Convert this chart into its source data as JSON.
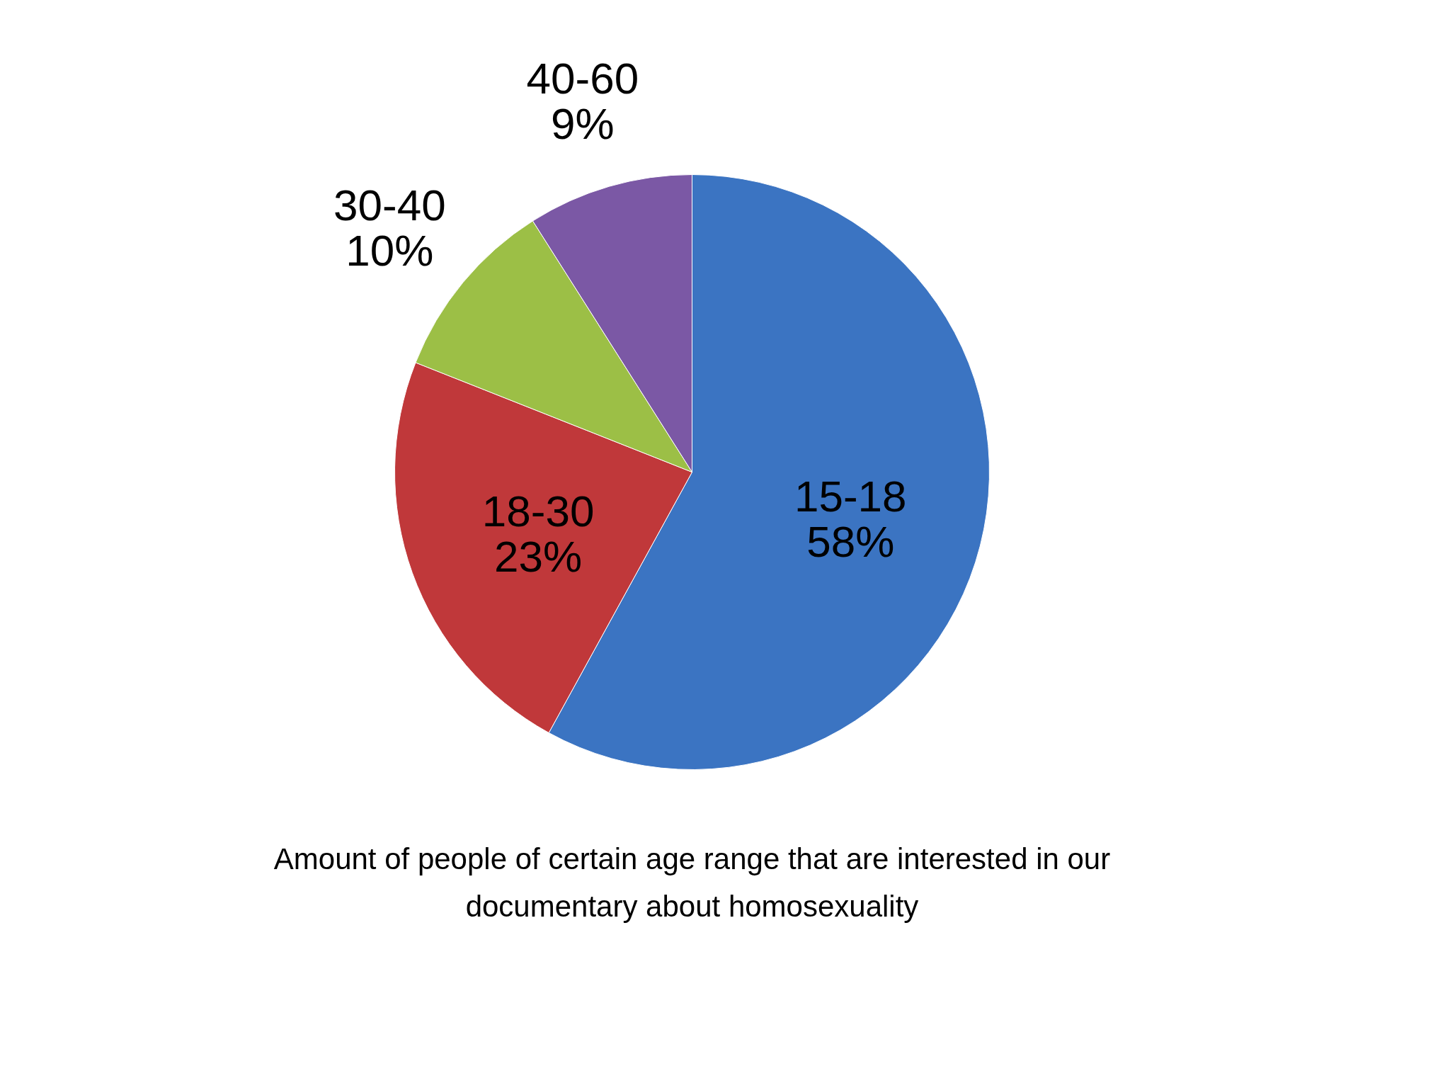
{
  "chart_data": {
    "type": "pie",
    "title": "Amount of people of certain age range that are interested in our documentary about homosexuality",
    "categories": [
      "15-18",
      "18-30",
      "30-40",
      "40-60"
    ],
    "values": [
      58,
      23,
      10,
      9
    ],
    "value_labels": [
      "58%",
      "23%",
      "10%",
      "9%"
    ],
    "colors": [
      "#3b74c2",
      "#c0383a",
      "#9cbf46",
      "#7b58a5"
    ]
  }
}
